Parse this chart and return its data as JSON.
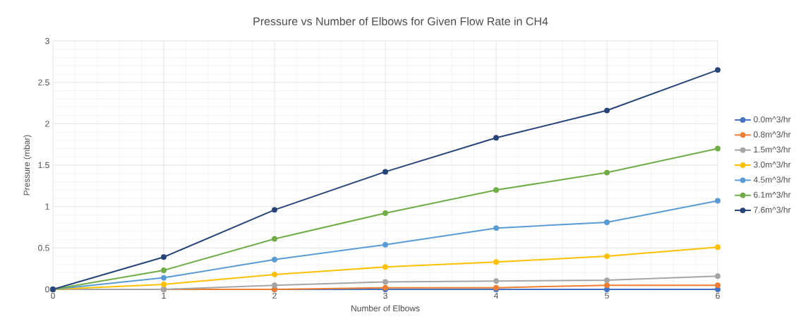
{
  "chart_data": {
    "type": "line",
    "title": "Pressure vs Number of Elbows for Given Flow Rate in CH4",
    "xlabel": "Number of Elbows",
    "ylabel": "Pressure  (mbar)",
    "x": [
      0,
      1,
      2,
      3,
      4,
      5,
      6
    ],
    "series": [
      {
        "name": "0.0m^3/hr",
        "color": "#4472c4",
        "values": [
          0,
          0,
          0,
          0,
          0,
          0,
          0
        ]
      },
      {
        "name": "0.8m^3/hr",
        "color": "#ed7d31",
        "values": [
          0,
          0,
          0,
          0.02,
          0.02,
          0.05,
          0.05
        ]
      },
      {
        "name": "1.5m^3/hr",
        "color": "#a5a5a5",
        "values": [
          0,
          0,
          0.05,
          0.09,
          0.1,
          0.11,
          0.16
        ]
      },
      {
        "name": "3.0m^3/hr",
        "color": "#ffc000",
        "values": [
          0,
          0.06,
          0.18,
          0.27,
          0.33,
          0.4,
          0.51
        ]
      },
      {
        "name": "4.5m^3/hr",
        "color": "#5b9bd5",
        "values": [
          0,
          0.14,
          0.36,
          0.54,
          0.74,
          0.81,
          1.07
        ]
      },
      {
        "name": "6.1m^3/hr",
        "color": "#70ad47",
        "values": [
          0,
          0.23,
          0.61,
          0.92,
          1.2,
          1.41,
          1.7
        ]
      },
      {
        "name": "7.6m^3/hr",
        "color": "#264478",
        "values": [
          0,
          0.39,
          0.96,
          1.42,
          1.83,
          2.16,
          2.65
        ]
      }
    ],
    "xlim": [
      0,
      6
    ],
    "ylim": [
      0,
      3
    ],
    "xticks": [
      0,
      1,
      2,
      3,
      4,
      5,
      6
    ],
    "yticks": [
      0,
      0.5,
      1,
      1.5,
      2,
      2.5,
      3
    ],
    "grid": true,
    "legend": "right",
    "marker": "circle",
    "line_style": "solid"
  }
}
